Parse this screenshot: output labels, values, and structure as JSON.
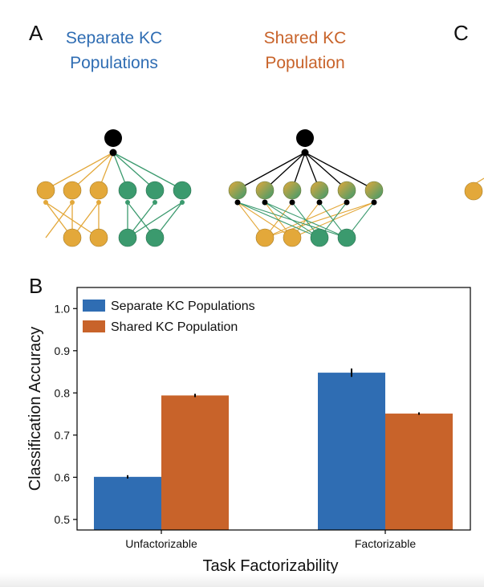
{
  "panels": {
    "a": {
      "letter": "A",
      "left_title_line1": "Separate KC",
      "left_title_line2": "Populations",
      "right_title_line1": "Shared KC",
      "right_title_line2": "Population"
    },
    "b": {
      "letter": "B"
    },
    "c": {
      "letter": "C"
    }
  },
  "colors": {
    "separate": "#2f6db3",
    "shared": "#c8632a",
    "node_yellow": "#e3a83a",
    "node_green": "#3b9a6e",
    "output_node": "#000000"
  },
  "chart_data": {
    "type": "bar",
    "categories": [
      "Unfactorizable",
      "Factorizable"
    ],
    "series": [
      {
        "name": "Separate KC Populations",
        "values": [
          0.601,
          0.848
        ],
        "errors": [
          0.002,
          0.008
        ]
      },
      {
        "name": "Shared KC Population",
        "values": [
          0.794,
          0.751
        ],
        "errors": [
          0.002,
          0.001
        ]
      }
    ],
    "xlabel": "Task Factorizability",
    "ylabel": "Classification Accuracy",
    "ylim": [
      0.475,
      1.05
    ],
    "yticks": [
      0.5,
      0.6,
      0.7,
      0.8,
      0.9,
      1.0
    ],
    "ytick_labels": [
      "0.5",
      "0.6",
      "0.7",
      "0.8",
      "0.9",
      "1.0"
    ],
    "legend_position": "top-left",
    "grid": false
  }
}
